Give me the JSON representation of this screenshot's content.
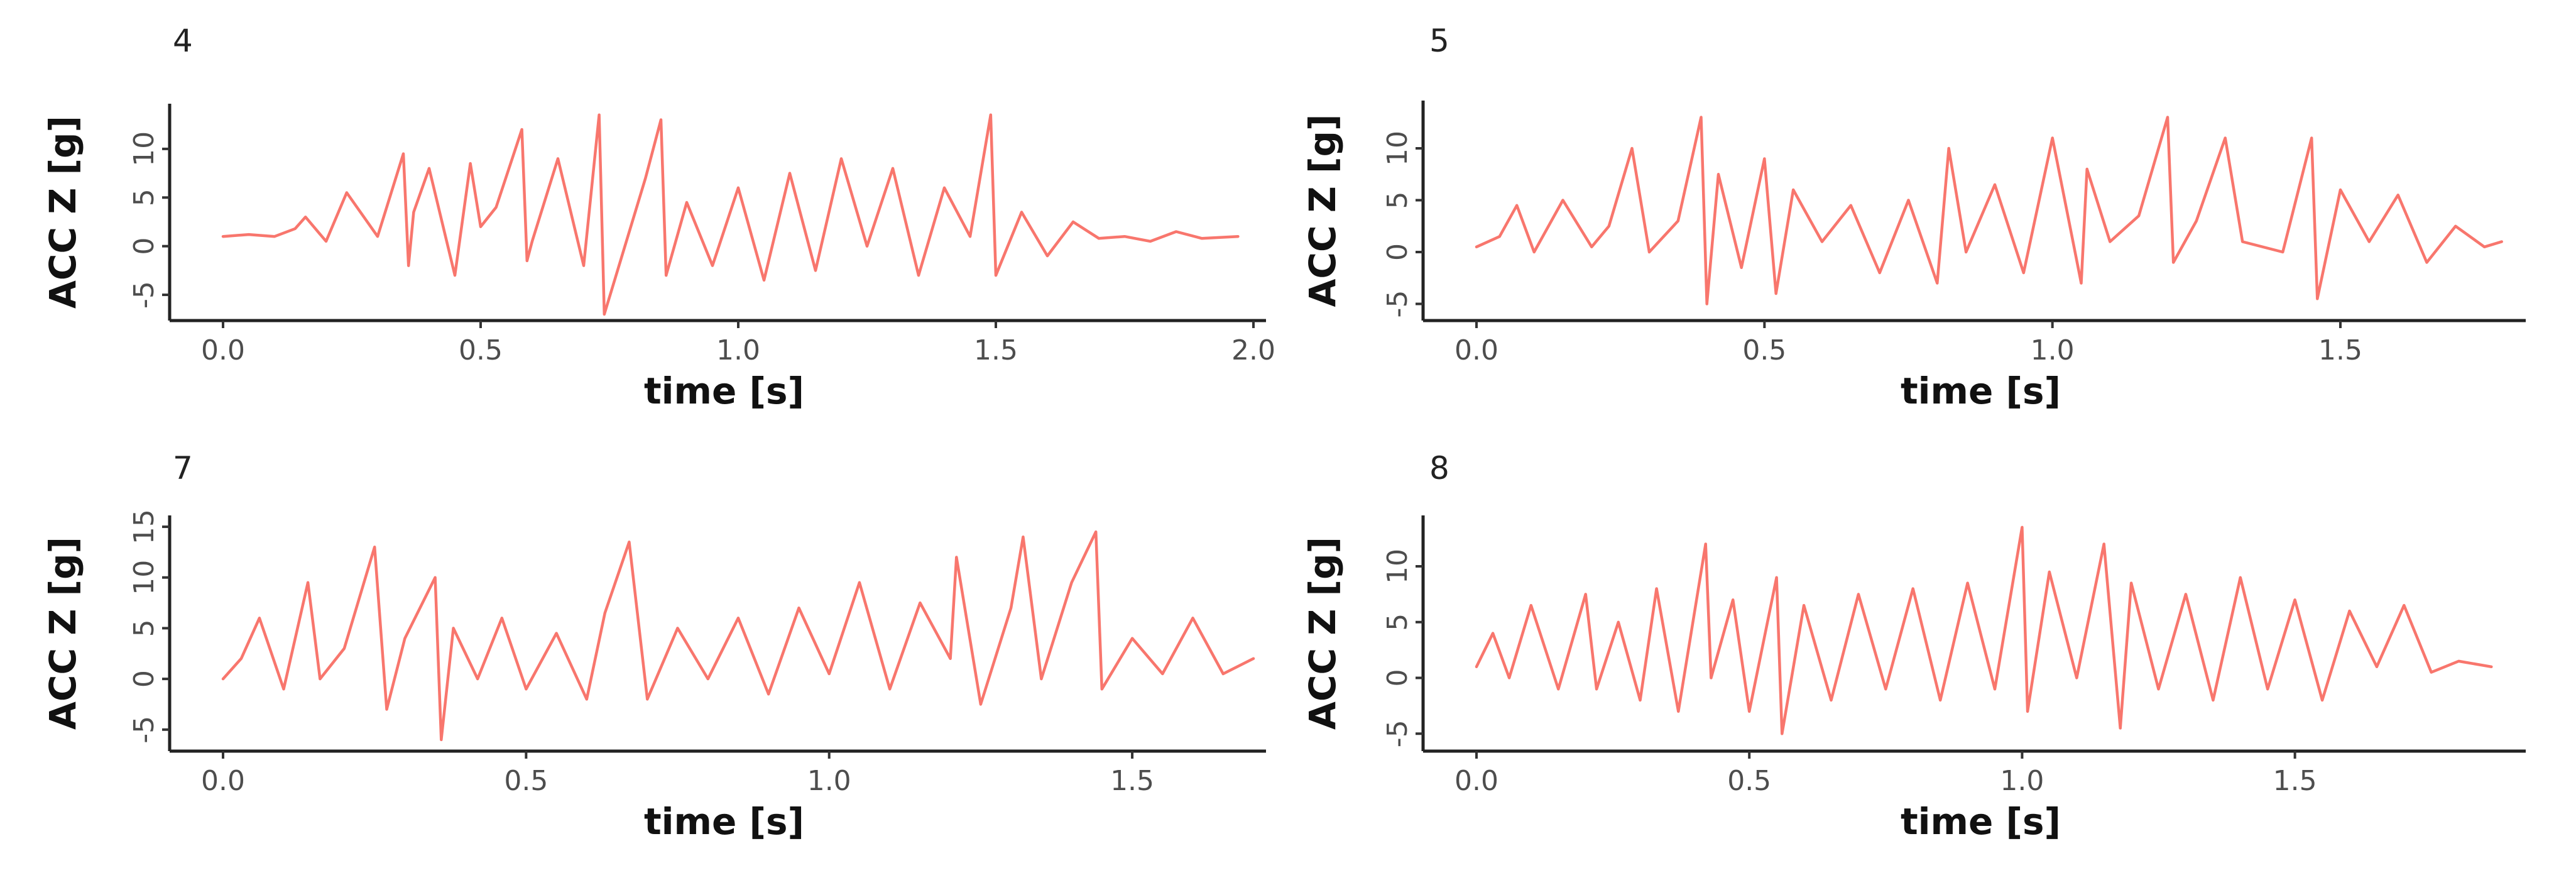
{
  "colors": {
    "series": "#F8766D",
    "axis": "#222222",
    "text": "#111111"
  },
  "chart_data": [
    {
      "type": "line",
      "panel_label": "4",
      "xlabel": "time [s]",
      "ylabel": "ACC Z [g]",
      "xlim": [
        0,
        2.0
      ],
      "ylim": [
        -7,
        14
      ],
      "xticks": [
        "0.0",
        "0.5",
        "1.0",
        "1.5",
        "2.0"
      ],
      "yticks": [
        "-5",
        "0",
        "5",
        "10"
      ],
      "grid": false,
      "legend": "none",
      "series": [
        {
          "x": [
            0.0,
            0.05,
            0.1,
            0.14,
            0.16,
            0.2,
            0.24,
            0.3,
            0.35,
            0.36,
            0.37,
            0.4,
            0.45,
            0.48,
            0.5,
            0.53,
            0.58,
            0.59,
            0.6,
            0.65,
            0.7,
            0.73,
            0.74,
            0.78,
            0.82,
            0.85,
            0.86,
            0.9,
            0.95,
            1.0,
            1.05,
            1.1,
            1.15,
            1.2,
            1.25,
            1.3,
            1.35,
            1.4,
            1.45,
            1.49,
            1.5,
            1.55,
            1.6,
            1.65,
            1.7,
            1.75,
            1.8,
            1.85,
            1.9,
            1.97
          ],
          "values": [
            1.0,
            1.2,
            1.0,
            1.8,
            3.0,
            0.5,
            5.5,
            1.0,
            9.5,
            -2.0,
            3.5,
            8.0,
            -3.0,
            8.5,
            2.0,
            4.0,
            12.0,
            -1.5,
            0.5,
            9.0,
            -2.0,
            13.5,
            -7.0,
            0.0,
            7.0,
            13.0,
            -3.0,
            4.5,
            -2.0,
            6.0,
            -3.5,
            7.5,
            -2.5,
            9.0,
            0.0,
            8.0,
            -3.0,
            6.0,
            1.0,
            13.5,
            -3.0,
            3.5,
            -1.0,
            2.5,
            0.8,
            1.0,
            0.5,
            1.5,
            0.8,
            1.0
          ]
        }
      ]
    },
    {
      "type": "line",
      "panel_label": "5",
      "xlabel": "time [s]",
      "ylabel": "ACC Z [g]",
      "xlim": [
        0,
        1.8
      ],
      "ylim": [
        -6,
        14
      ],
      "xticks": [
        "0.0",
        "0.5",
        "1.0",
        "1.5"
      ],
      "yticks": [
        "-5",
        "0",
        "5",
        "10"
      ],
      "grid": false,
      "legend": "none",
      "series": [
        {
          "x": [
            0.0,
            0.04,
            0.07,
            0.1,
            0.15,
            0.2,
            0.23,
            0.27,
            0.3,
            0.35,
            0.39,
            0.4,
            0.42,
            0.46,
            0.5,
            0.52,
            0.55,
            0.6,
            0.65,
            0.7,
            0.75,
            0.8,
            0.82,
            0.85,
            0.9,
            0.95,
            1.0,
            1.05,
            1.06,
            1.1,
            1.15,
            1.2,
            1.21,
            1.25,
            1.3,
            1.33,
            1.4,
            1.45,
            1.46,
            1.5,
            1.55,
            1.6,
            1.65,
            1.7,
            1.75,
            1.78
          ],
          "values": [
            0.5,
            1.5,
            4.5,
            0.0,
            5.0,
            0.5,
            2.5,
            10.0,
            0.0,
            3.0,
            13.0,
            -5.0,
            7.5,
            -1.5,
            9.0,
            -4.0,
            6.0,
            1.0,
            4.5,
            -2.0,
            5.0,
            -3.0,
            10.0,
            0.0,
            6.5,
            -2.0,
            11.0,
            -3.0,
            8.0,
            1.0,
            3.5,
            13.0,
            -1.0,
            3.0,
            11.0,
            1.0,
            0.0,
            11.0,
            -4.5,
            6.0,
            1.0,
            5.5,
            -1.0,
            2.5,
            0.5,
            1.0
          ]
        }
      ]
    },
    {
      "type": "line",
      "panel_label": "7",
      "xlabel": "time [s]",
      "ylabel": "ACC Z [g]",
      "xlim": [
        0,
        1.7
      ],
      "ylim": [
        -6.5,
        15.5
      ],
      "xticks": [
        "0.0",
        "0.5",
        "1.0",
        "1.5"
      ],
      "yticks": [
        "-5",
        "0",
        "5",
        "10",
        "15"
      ],
      "grid": false,
      "legend": "none",
      "series": [
        {
          "x": [
            0.0,
            0.03,
            0.06,
            0.1,
            0.14,
            0.16,
            0.2,
            0.25,
            0.27,
            0.3,
            0.35,
            0.36,
            0.38,
            0.42,
            0.46,
            0.5,
            0.55,
            0.6,
            0.63,
            0.67,
            0.7,
            0.75,
            0.8,
            0.85,
            0.9,
            0.95,
            1.0,
            1.05,
            1.1,
            1.15,
            1.2,
            1.21,
            1.25,
            1.3,
            1.32,
            1.35,
            1.4,
            1.44,
            1.45,
            1.5,
            1.55,
            1.6,
            1.65,
            1.7
          ],
          "values": [
            0.0,
            2.0,
            6.0,
            -1.0,
            9.5,
            0.0,
            3.0,
            13.0,
            -3.0,
            4.0,
            10.0,
            -6.0,
            5.0,
            0.0,
            6.0,
            -1.0,
            4.5,
            -2.0,
            6.5,
            13.5,
            -2.0,
            5.0,
            0.0,
            6.0,
            -1.5,
            7.0,
            0.5,
            9.5,
            -1.0,
            7.5,
            2.0,
            12.0,
            -2.5,
            7.0,
            14.0,
            0.0,
            9.5,
            14.5,
            -1.0,
            4.0,
            0.5,
            6.0,
            0.5,
            2.0
          ]
        }
      ]
    },
    {
      "type": "line",
      "panel_label": "8",
      "xlabel": "time [s]",
      "ylabel": "ACC Z [g]",
      "xlim": [
        0,
        1.9
      ],
      "ylim": [
        -6,
        14
      ],
      "xticks": [
        "0.0",
        "0.5",
        "1.0",
        "1.5"
      ],
      "yticks": [
        "-5",
        "0",
        "5",
        "10"
      ],
      "grid": false,
      "legend": "none",
      "series": [
        {
          "x": [
            0.0,
            0.03,
            0.06,
            0.1,
            0.15,
            0.2,
            0.22,
            0.26,
            0.3,
            0.33,
            0.37,
            0.42,
            0.43,
            0.47,
            0.5,
            0.55,
            0.56,
            0.6,
            0.65,
            0.7,
            0.75,
            0.8,
            0.85,
            0.9,
            0.95,
            1.0,
            1.01,
            1.05,
            1.1,
            1.15,
            1.18,
            1.2,
            1.25,
            1.3,
            1.35,
            1.4,
            1.45,
            1.5,
            1.55,
            1.6,
            1.65,
            1.7,
            1.75,
            1.8,
            1.86
          ],
          "values": [
            1.0,
            4.0,
            0.0,
            6.5,
            -1.0,
            7.5,
            -1.0,
            5.0,
            -2.0,
            8.0,
            -3.0,
            12.0,
            0.0,
            7.0,
            -3.0,
            9.0,
            -5.0,
            6.5,
            -2.0,
            7.5,
            -1.0,
            8.0,
            -2.0,
            8.5,
            -1.0,
            13.5,
            -3.0,
            9.5,
            0.0,
            12.0,
            -4.5,
            8.5,
            -1.0,
            7.5,
            -2.0,
            9.0,
            -1.0,
            7.0,
            -2.0,
            6.0,
            1.0,
            6.5,
            0.5,
            1.5,
            1.0
          ]
        }
      ]
    }
  ]
}
